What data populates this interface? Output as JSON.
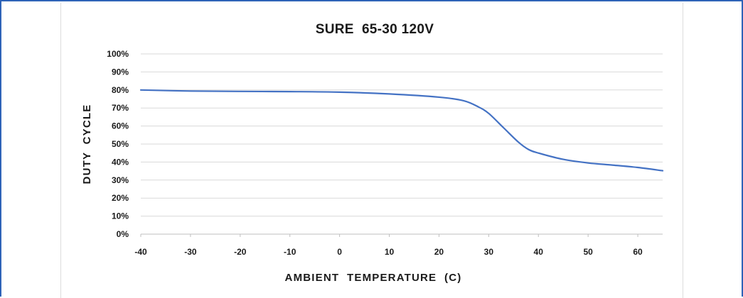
{
  "chart_data": {
    "type": "line",
    "title": "SURE  65-30 120V",
    "xlabel": "AMBIENT  TEMPERATURE  (C)",
    "ylabel": "DUTY  CYCLE",
    "xlim": [
      -40,
      65
    ],
    "ylim": [
      0,
      100
    ],
    "xticks": [
      "-40",
      "-30",
      "-20",
      "-10",
      "0",
      "10",
      "20",
      "30",
      "40",
      "50",
      "60"
    ],
    "yticks": [
      "0%",
      "10%",
      "20%",
      "30%",
      "40%",
      "50%",
      "60%",
      "70%",
      "80%",
      "90%",
      "100%"
    ],
    "grid": "horizontal",
    "legend": "none",
    "series": [
      {
        "color": "#4472c4",
        "x": [
          -40,
          -30,
          -20,
          -10,
          0,
          10,
          20,
          25,
          28,
          30,
          33,
          36,
          38,
          40,
          45,
          50,
          55,
          60,
          65
        ],
        "y": [
          80,
          79.4,
          79.2,
          79.1,
          78.8,
          77.8,
          76,
          74,
          70.5,
          67,
          59,
          51,
          47,
          45,
          41.5,
          39.5,
          38.3,
          37,
          35.2
        ]
      }
    ]
  },
  "colors": {
    "frame_border": "#2e63b8",
    "gridline": "#d9d9d9",
    "series_line": "#4472c4"
  }
}
